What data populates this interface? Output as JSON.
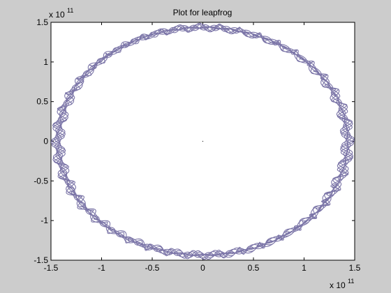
{
  "chart_data": {
    "type": "line",
    "title": "Plot for leapfrog",
    "xlabel": "",
    "ylabel": "",
    "xlim": [
      -1.5,
      1.5
    ],
    "ylim": [
      -1.5,
      1.5
    ],
    "xticks": [
      -1.5,
      -1,
      -0.5,
      0,
      0.5,
      1,
      1.5
    ],
    "yticks": [
      -1.5,
      -1,
      -0.5,
      0,
      0.5,
      1,
      1.5
    ],
    "xtick_labels": [
      "-1.5",
      "-1",
      "-0.5",
      "0",
      "0.5",
      "1",
      "1.5"
    ],
    "ytick_labels": [
      "-1.5",
      "-1",
      "-0.5",
      "0",
      "0.5",
      "1",
      "1.5"
    ],
    "x_multiplier_base": "x 10",
    "x_multiplier_exp": "11",
    "y_multiplier_base": "x 10",
    "y_multiplier_exp": "11",
    "grid": false,
    "legend": "none",
    "series": [
      {
        "color": "#7c76a8",
        "orbit": {
          "center": [
            0,
            0
          ],
          "radius_x_min": 1.36,
          "radius_x_max": 1.5,
          "radius_y_min": 1.38,
          "radius_y_max": 1.49,
          "turns": 8,
          "wobbles_per_turn": 42
        }
      }
    ],
    "center_point": {
      "x": 0,
      "y": 0,
      "color": "#000000"
    }
  }
}
